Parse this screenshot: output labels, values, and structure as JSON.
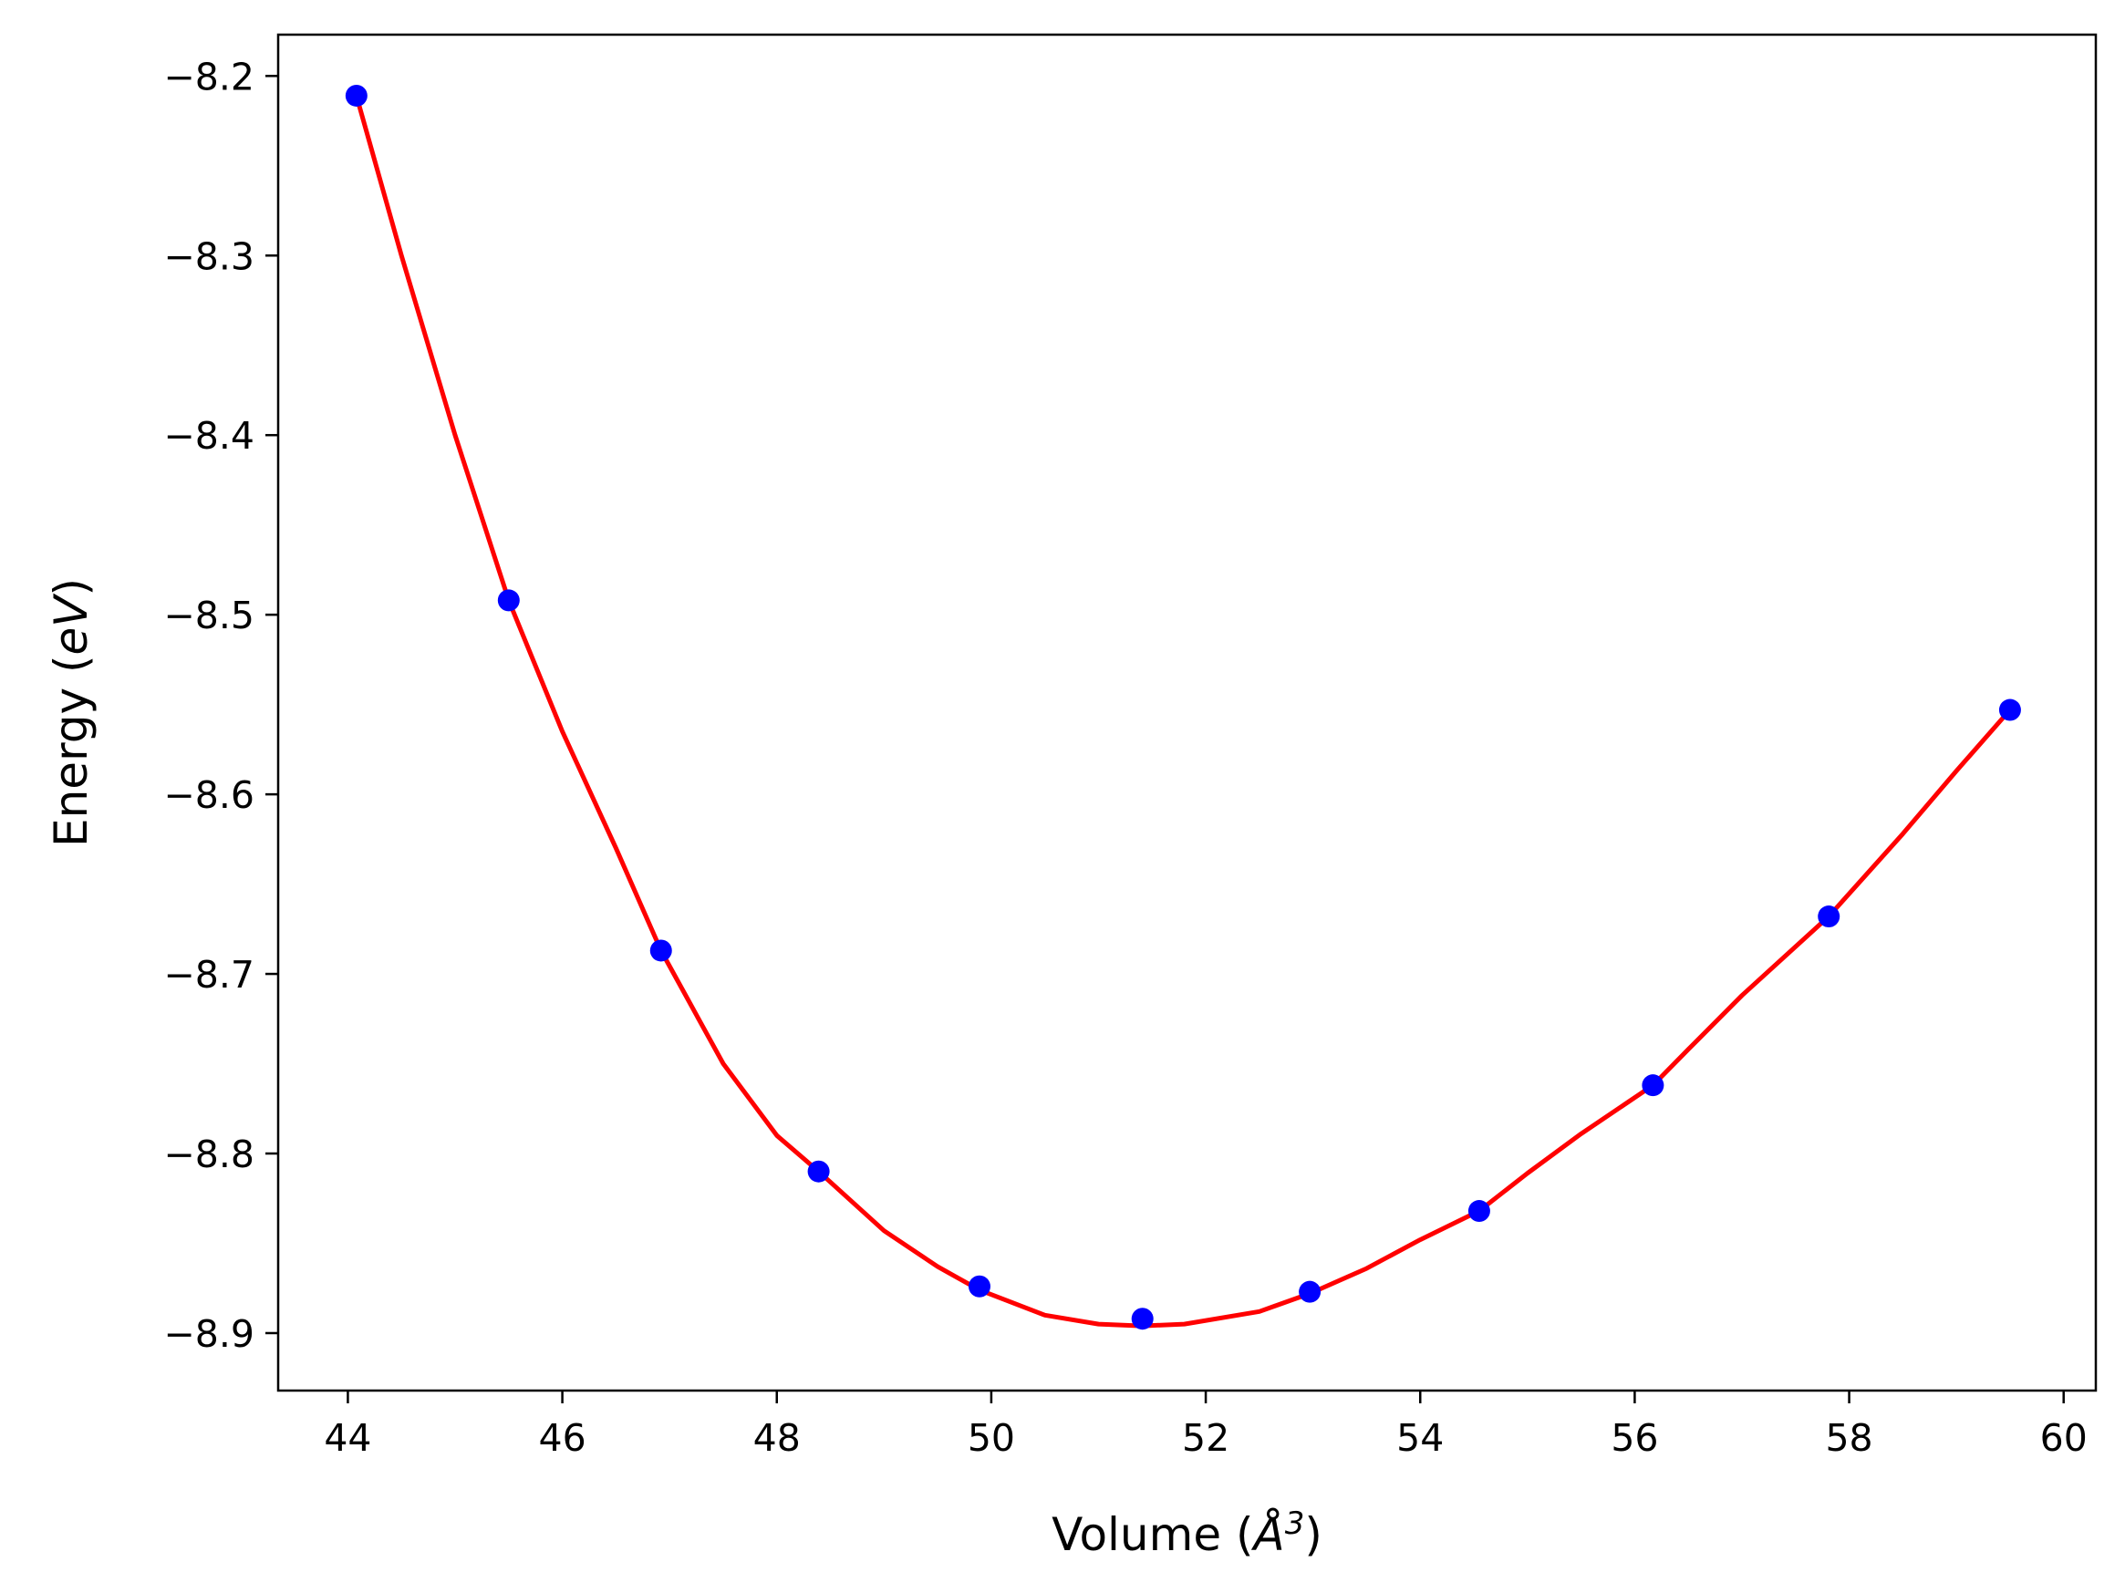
{
  "chart_data": {
    "type": "scatter",
    "title": "",
    "xlabel_parts": {
      "prefix": "Volume (",
      "symbol": "Å",
      "exponent": "3",
      "suffix": ")"
    },
    "ylabel_parts": {
      "prefix": "Energy (",
      "unit": "eV",
      "suffix": ")"
    },
    "xlim": [
      43.35,
      60.3
    ],
    "ylim": [
      -8.932,
      -8.177
    ],
    "x_ticks": [
      44,
      46,
      48,
      50,
      52,
      54,
      56,
      58,
      60
    ],
    "y_ticks": [
      -8.2,
      -8.3,
      -8.4,
      -8.5,
      -8.6,
      -8.7,
      -8.8,
      -8.9
    ],
    "x_tick_labels": [
      "44",
      "46",
      "48",
      "50",
      "52",
      "54",
      "56",
      "58",
      "60"
    ],
    "y_tick_labels": [
      "−8.2",
      "−8.3",
      "−8.4",
      "−8.5",
      "−8.6",
      "−8.7",
      "−8.8",
      "−8.9"
    ],
    "grid": false,
    "legend": "none",
    "series": [
      {
        "kind": "points",
        "color": "#0000ff",
        "x": [
          44.08,
          45.5,
          46.92,
          48.39,
          49.89,
          51.41,
          52.97,
          54.55,
          56.17,
          57.81,
          59.5
        ],
        "y": [
          -8.211,
          -8.492,
          -8.687,
          -8.81,
          -8.874,
          -8.892,
          -8.877,
          -8.832,
          -8.762,
          -8.668,
          -8.553
        ]
      },
      {
        "kind": "fit-curve",
        "color": "#ff0000",
        "x": [
          44.08,
          44.5,
          45.0,
          45.5,
          46.0,
          46.5,
          46.92,
          47.5,
          48.0,
          48.39,
          49.0,
          49.5,
          49.89,
          50.5,
          51.0,
          51.41,
          51.8,
          52.5,
          52.97,
          53.5,
          54.0,
          54.55,
          55.0,
          55.5,
          56.17,
          56.5,
          57.0,
          57.81,
          58.5,
          59.0,
          59.5
        ],
        "y": [
          -8.211,
          -8.3,
          -8.4,
          -8.492,
          -8.565,
          -8.63,
          -8.687,
          -8.75,
          -8.79,
          -8.81,
          -8.843,
          -8.863,
          -8.876,
          -8.89,
          -8.895,
          -8.896,
          -8.895,
          -8.888,
          -8.878,
          -8.864,
          -8.848,
          -8.832,
          -8.811,
          -8.789,
          -8.762,
          -8.742,
          -8.712,
          -8.668,
          -8.622,
          -8.587,
          -8.553
        ]
      }
    ]
  }
}
